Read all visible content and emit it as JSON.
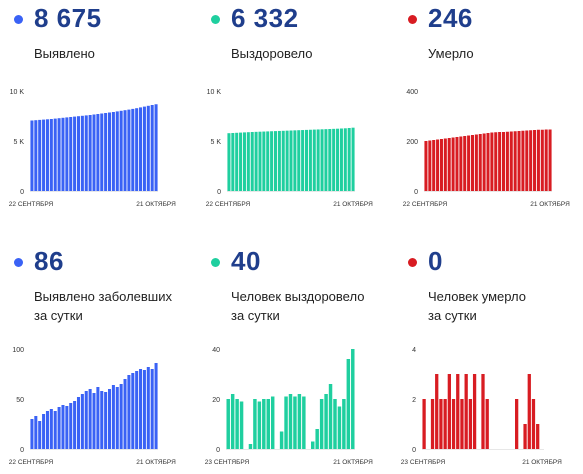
{
  "colors": {
    "blue": "#3a62f5",
    "teal": "#1fcf9f",
    "red": "#d81c22",
    "number": "#1f3e8c"
  },
  "x_labels": {
    "start": "22 СЕНТЯБРЯ",
    "start_alt": "23 СЕНТЯБРЯ",
    "end": "21 ОКТЯБРЯ"
  },
  "panels": [
    {
      "value": "8 675",
      "label": "Выявлено",
      "label2": "",
      "color": "#3a62f5"
    },
    {
      "value": "6 332",
      "label": "Выздоровело",
      "label2": "",
      "color": "#1fcf9f"
    },
    {
      "value": "246",
      "label": "Умерло",
      "label2": "",
      "color": "#d81c22"
    },
    {
      "value": "86",
      "label": "Выявлено заболевших",
      "label2": "за сутки",
      "color": "#3a62f5"
    },
    {
      "value": "40",
      "label": "Человек выздоровело",
      "label2": "за сутки",
      "color": "#1fcf9f"
    },
    {
      "value": "0",
      "label": "Человек умерло",
      "label2": "за сутки",
      "color": "#d81c22"
    }
  ],
  "chart_data": [
    {
      "type": "bar",
      "name": "confirmed_total",
      "x_start": "22 СЕНТЯБРЯ",
      "x_end": "21 ОКТЯБРЯ",
      "yticks": [
        "0",
        "5 K",
        "10 K"
      ],
      "ylim": [
        0,
        10000
      ],
      "values": [
        7050,
        7080,
        7110,
        7140,
        7170,
        7200,
        7240,
        7280,
        7320,
        7360,
        7400,
        7440,
        7480,
        7520,
        7560,
        7600,
        7650,
        7700,
        7750,
        7800,
        7850,
        7900,
        7960,
        8020,
        8080,
        8140,
        8210,
        8280,
        8360,
        8440,
        8520,
        8600,
        8675
      ]
    },
    {
      "type": "bar",
      "name": "recovered_total",
      "x_start": "22 СЕНТЯБРЯ",
      "x_end": "21 ОКТЯБРЯ",
      "yticks": [
        "0",
        "5 K",
        "10 K"
      ],
      "ylim": [
        0,
        10000
      ],
      "values": [
        5780,
        5800,
        5820,
        5840,
        5860,
        5880,
        5900,
        5915,
        5930,
        5945,
        5960,
        5975,
        5990,
        6005,
        6020,
        6035,
        6050,
        6065,
        6080,
        6095,
        6110,
        6125,
        6140,
        6155,
        6170,
        6185,
        6200,
        6215,
        6230,
        6250,
        6270,
        6300,
        6332
      ]
    },
    {
      "type": "bar",
      "name": "deaths_total",
      "x_start": "22 СЕНТЯБРЯ",
      "x_end": "21 ОКТЯБРЯ",
      "yticks": [
        "0",
        "200",
        "400"
      ],
      "ylim": [
        0,
        400
      ],
      "values": [
        200,
        202,
        204,
        206,
        208,
        210,
        212,
        214,
        216,
        218,
        220,
        222,
        224,
        226,
        228,
        230,
        232,
        234,
        235,
        236,
        236,
        237,
        238,
        239,
        240,
        241,
        242,
        243,
        244,
        245,
        245,
        246,
        246
      ]
    },
    {
      "type": "bar",
      "name": "confirmed_daily",
      "x_start": "22 СЕНТЯБРЯ",
      "x_end": "21 ОКТЯБРЯ",
      "yticks": [
        "0",
        "50",
        "100"
      ],
      "ylim": [
        0,
        100
      ],
      "values": [
        30,
        33,
        28,
        35,
        38,
        40,
        38,
        42,
        44,
        43,
        46,
        48,
        52,
        55,
        58,
        60,
        56,
        62,
        58,
        57,
        60,
        64,
        62,
        65,
        70,
        74,
        76,
        78,
        80,
        79,
        82,
        80,
        86
      ]
    },
    {
      "type": "bar",
      "name": "recovered_daily",
      "x_start": "23 СЕНТЯБРЯ",
      "x_end": "21 ОКТЯБРЯ",
      "yticks": [
        "0",
        "20",
        "40"
      ],
      "ylim": [
        0,
        40
      ],
      "values": [
        20,
        22,
        20,
        19,
        0,
        2,
        20,
        19,
        20,
        20,
        21,
        0,
        7,
        21,
        22,
        21,
        22,
        21,
        0,
        3,
        8,
        20,
        22,
        26,
        20,
        17,
        20,
        36,
        40
      ]
    },
    {
      "type": "bar",
      "name": "deaths_daily",
      "x_start": "23 СЕНТЯБРЯ",
      "x_end": "21 ОКТЯБРЯ",
      "yticks": [
        "0",
        "2",
        "4"
      ],
      "ylim": [
        0,
        4
      ],
      "values": [
        2,
        0,
        2,
        3,
        2,
        2,
        3,
        2,
        3,
        2,
        3,
        2,
        3,
        0,
        3,
        2,
        0,
        0,
        0,
        0,
        0,
        0,
        2,
        0,
        1,
        3,
        2,
        1,
        0
      ]
    }
  ]
}
